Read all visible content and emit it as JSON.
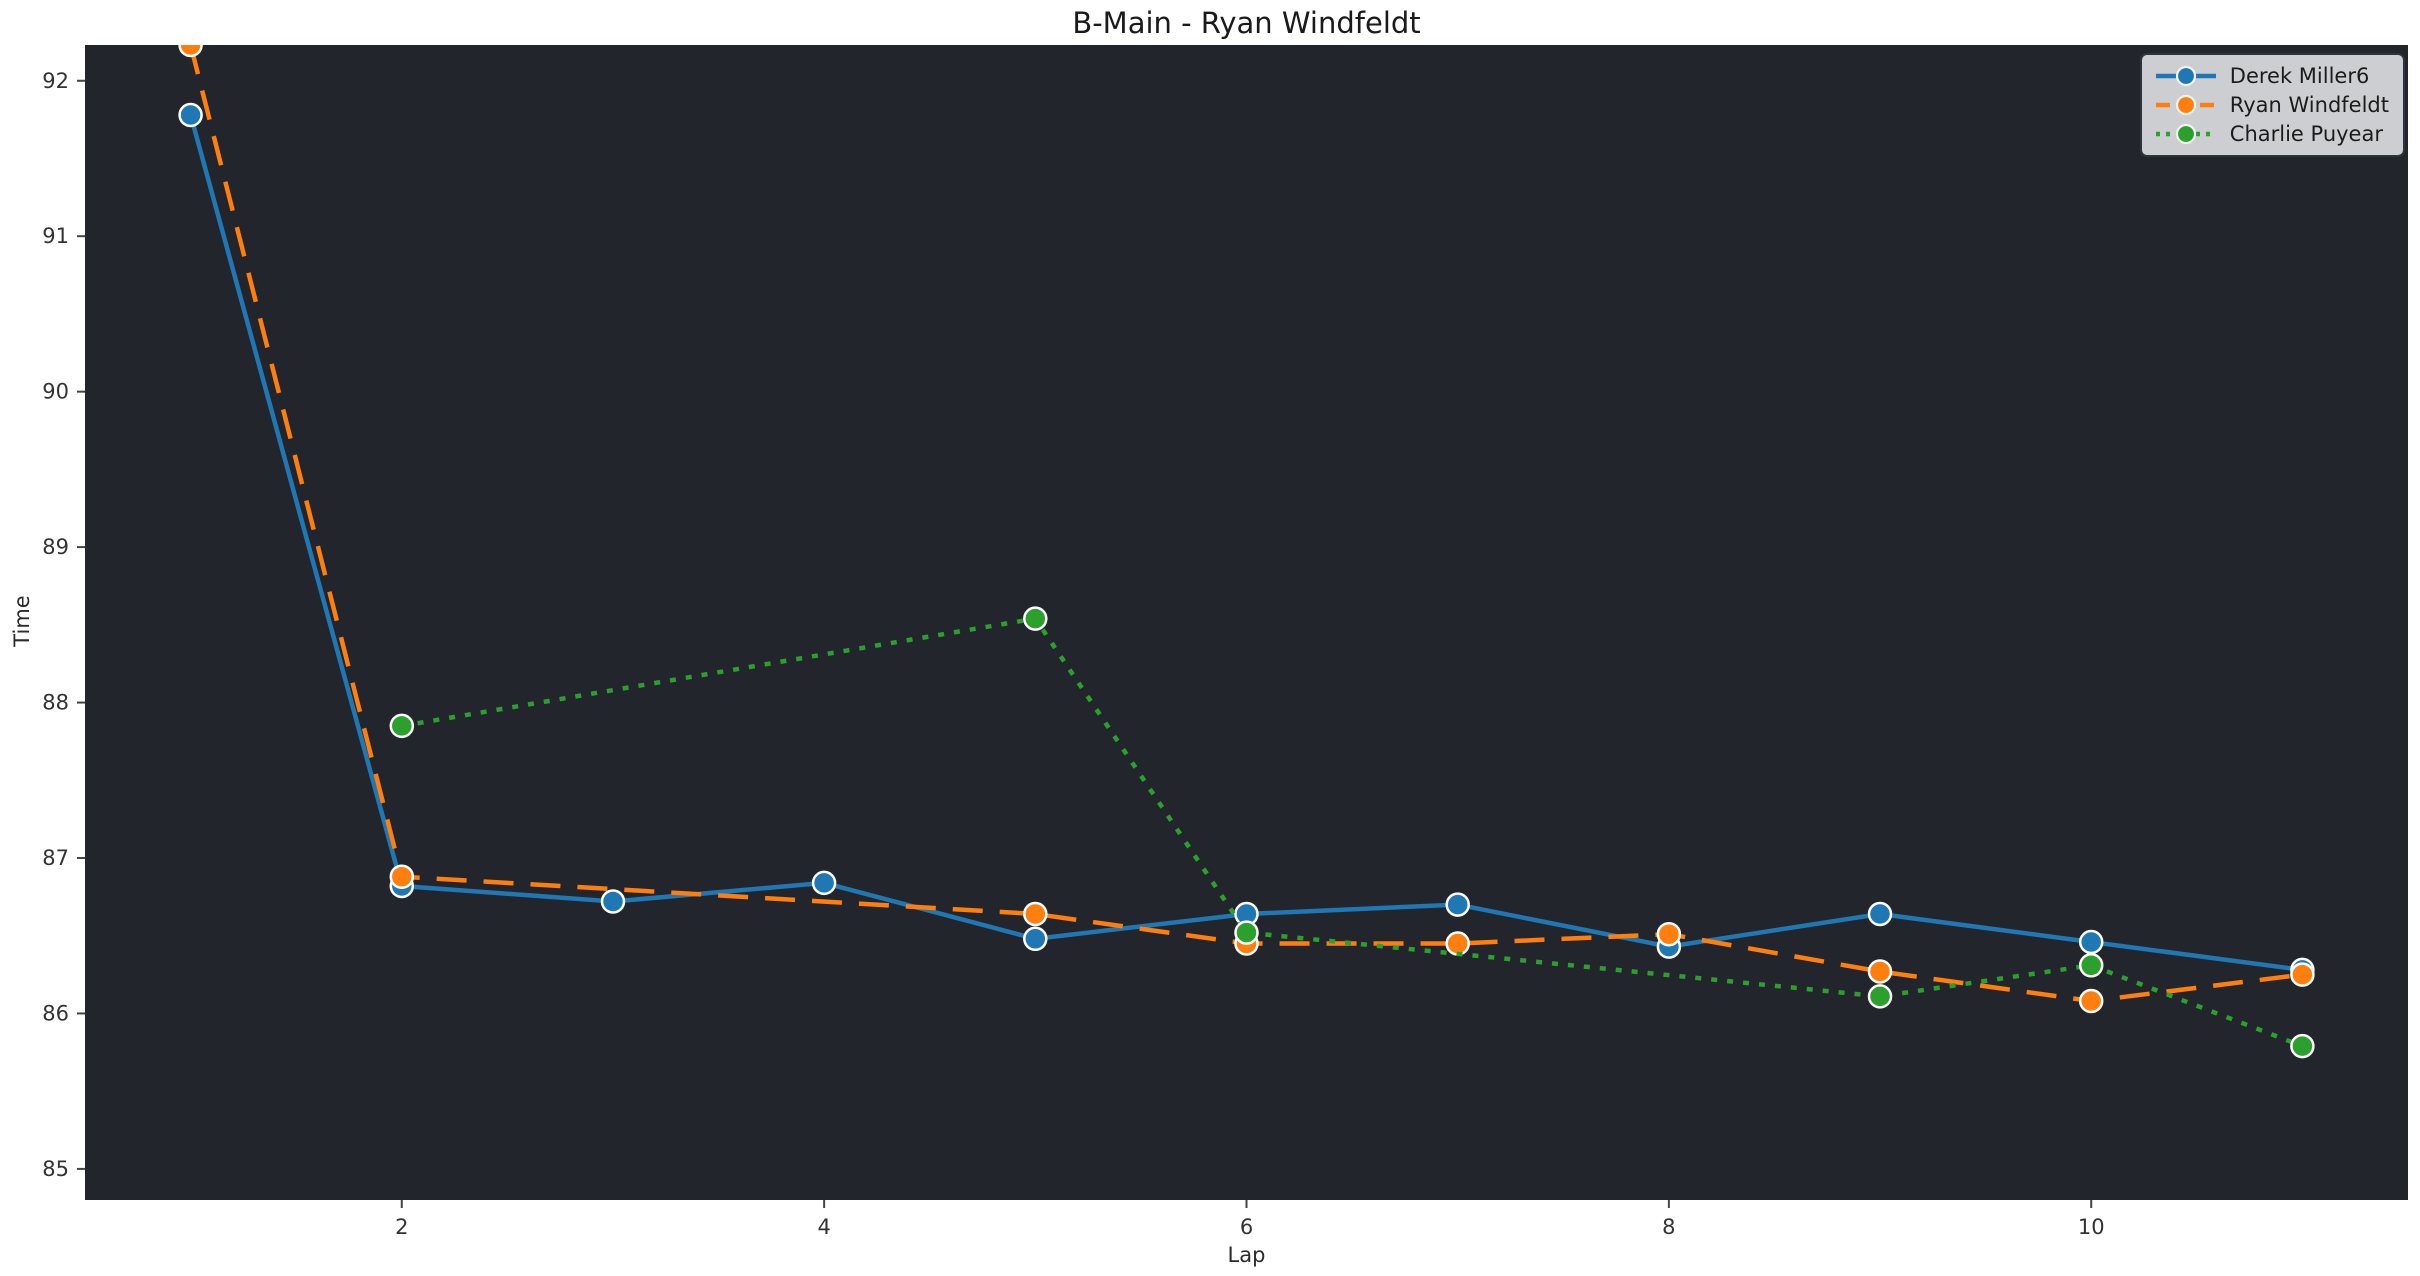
{
  "figure": {
    "colors": {
      "figure_bg": "#ffffff",
      "axes_bg": "#22262c",
      "tick_text": "#333333",
      "title_text": "#1a1a1a",
      "legend_bg": "#ccced2",
      "legend_border": "#2f333b",
      "marker_edge": "#ffffff"
    }
  },
  "chart_data": {
    "type": "line",
    "title": "B-Main - Ryan Windfeldt",
    "xlabel": "Lap",
    "ylabel": "Time",
    "xlim": [
      0.5,
      11.5
    ],
    "ylim": [
      84.8,
      92.23
    ],
    "xticks": [
      2,
      4,
      6,
      8,
      10
    ],
    "yticks": [
      85,
      86,
      87,
      88,
      89,
      90,
      91,
      92
    ],
    "grid": false,
    "legend_position": "upper-right",
    "series": [
      {
        "name": "Derek Miller6",
        "color": "#1f77b4",
        "line_style": "solid",
        "marker": "circle",
        "x": [
          1,
          2,
          3,
          4,
          5,
          6,
          7,
          8,
          9,
          10,
          11
        ],
        "y": [
          91.78,
          86.82,
          86.72,
          86.84,
          86.48,
          86.64,
          86.7,
          86.43,
          86.64,
          86.46,
          86.28
        ]
      },
      {
        "name": "Ryan Windfeldt",
        "color": "#ff7f0e",
        "line_style": "dashed",
        "marker": "circle",
        "x": [
          1,
          2,
          5,
          6,
          7,
          8,
          9,
          10,
          11
        ],
        "y": [
          92.23,
          86.88,
          86.64,
          86.45,
          86.45,
          86.51,
          86.27,
          86.08,
          86.25
        ]
      },
      {
        "name": "Charlie Puyear",
        "color": "#2ca02c",
        "line_style": "dotted",
        "marker": "circle",
        "x": [
          2,
          5,
          6,
          9,
          10,
          11
        ],
        "y": [
          87.85,
          88.54,
          86.52,
          86.11,
          86.31,
          85.79
        ]
      }
    ]
  }
}
